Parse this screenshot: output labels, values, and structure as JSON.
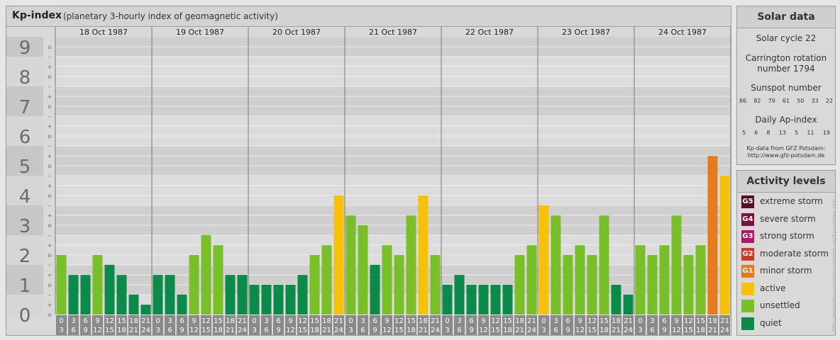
{
  "header": {
    "title": "Kp-index",
    "subtitle": "(planetary 3-hourly index of geomagnetic activity)"
  },
  "chart_data": {
    "type": "bar",
    "y_ticks": [
      "0",
      "1",
      "2",
      "3",
      "4",
      "5",
      "6",
      "7",
      "8",
      "9"
    ],
    "ylim": [
      0,
      9.33
    ],
    "subtick_labels": [
      "+",
      "–",
      "o"
    ],
    "days": [
      "18 Oct 1987",
      "19 Oct 1987",
      "20 Oct 1987",
      "21 Oct 1987",
      "22 Oct 1987",
      "23 Oct 1987",
      "24 Oct 1987"
    ],
    "hour_intervals": [
      [
        "0",
        "3"
      ],
      [
        "3",
        "6"
      ],
      [
        "6",
        "9"
      ],
      [
        "9",
        "12"
      ],
      [
        "12",
        "15"
      ],
      [
        "15",
        "18"
      ],
      [
        "18",
        "21"
      ],
      [
        "21",
        "24"
      ]
    ],
    "values": [
      2.0,
      1.33,
      1.33,
      2.0,
      1.67,
      1.33,
      0.67,
      0.33,
      1.33,
      1.33,
      0.67,
      2.0,
      2.67,
      2.33,
      1.33,
      1.33,
      1.0,
      1.0,
      1.0,
      1.0,
      1.33,
      2.0,
      2.33,
      4.0,
      3.33,
      3.0,
      1.67,
      2.33,
      2.0,
      3.33,
      4.0,
      2.0,
      1.0,
      1.33,
      1.0,
      1.0,
      1.0,
      1.0,
      2.0,
      2.33,
      3.67,
      3.33,
      2.0,
      2.33,
      2.0,
      3.33,
      1.0,
      0.67,
      2.33,
      2.0,
      2.33,
      3.33,
      2.0,
      2.33,
      5.33,
      4.67
    ],
    "level_colors": {
      "quiet": "#0b8a4a",
      "unsettled": "#79bf2a",
      "active": "#f7c10b",
      "G1": "#e47b1c"
    }
  },
  "solar": {
    "title": "Solar data",
    "cycle": "Solar cycle 22",
    "carrington_line1": "Carrington rotation",
    "carrington_line2": "number 1794",
    "sunspot_label": "Sunspot number",
    "sunspot_values": [
      "86",
      "82",
      "79",
      "61",
      "50",
      "33",
      "22"
    ],
    "ap_label": "Daily Ap-index",
    "ap_values": [
      "5",
      "6",
      "8",
      "13",
      "5",
      "11",
      "19"
    ],
    "source_line1": "Kp-data from GFZ Potsdam:",
    "source_line2": "http://www.gfz-potsdam.de"
  },
  "activity": {
    "title": "Activity levels",
    "levels": [
      {
        "code": "G5",
        "label": "extreme storm",
        "color": "#5a0b2a"
      },
      {
        "code": "G4",
        "label": "severe storm",
        "color": "#7e0f3e"
      },
      {
        "code": "G3",
        "label": "strong storm",
        "color": "#b0166a"
      },
      {
        "code": "G2",
        "label": "moderate storm",
        "color": "#d03a25"
      },
      {
        "code": "G1",
        "label": "minor storm",
        "color": "#e47b1c"
      },
      {
        "code": "",
        "label": "active",
        "color": "#f7c10b"
      },
      {
        "code": "",
        "label": "unsettled",
        "color": "#79bf2a"
      },
      {
        "code": "",
        "label": "quiet",
        "color": "#0b8a4a"
      }
    ]
  },
  "credit": "http://www.theusersintheuniverse.org/kp-archive.php"
}
